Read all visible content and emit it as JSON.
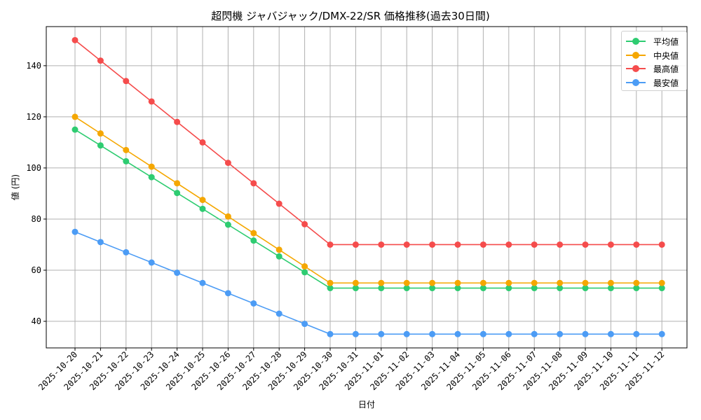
{
  "title": "超閃機 ジャバジャック/DMX-22/SR 価格推移(過去30日間)",
  "chart_data": {
    "type": "line",
    "title": "超閃機 ジャバジャック/DMX-22/SR 価格推移(過去30日間)",
    "xlabel": "日付",
    "ylabel": "値 (円)",
    "ylim": [
      29.6,
      155.3
    ],
    "yticks": [
      40,
      60,
      80,
      100,
      120,
      140
    ],
    "grid": true,
    "legend_position": "upper right",
    "x": [
      "2025-10-20",
      "2025-10-21",
      "2025-10-22",
      "2025-10-23",
      "2025-10-24",
      "2025-10-25",
      "2025-10-26",
      "2025-10-27",
      "2025-10-28",
      "2025-10-29",
      "2025-10-30",
      "2025-10-31",
      "2025-11-01",
      "2025-11-02",
      "2025-11-03",
      "2025-11-04",
      "2025-11-05",
      "2025-11-06",
      "2025-11-07",
      "2025-11-08",
      "2025-11-09",
      "2025-11-10",
      "2025-11-11",
      "2025-11-12"
    ],
    "series": [
      {
        "name": "平均値",
        "color": "#2ecc71",
        "values": [
          115,
          108.8,
          102.6,
          96.4,
          90.2,
          84,
          77.8,
          71.6,
          65.4,
          59.2,
          53,
          53,
          53,
          53,
          53,
          53,
          53,
          53,
          53,
          53,
          53,
          53,
          53,
          53
        ]
      },
      {
        "name": "中央値",
        "color": "#f5a700",
        "values": [
          120,
          113.5,
          107,
          100.5,
          94,
          87.5,
          81,
          74.5,
          68,
          61.5,
          55,
          55,
          55,
          55,
          55,
          55,
          55,
          55,
          55,
          55,
          55,
          55,
          55,
          55
        ]
      },
      {
        "name": "最高値",
        "color": "#f54c4c",
        "values": [
          150,
          142,
          134,
          126,
          118,
          110,
          102,
          94,
          86,
          78,
          70,
          70,
          70,
          70,
          70,
          70,
          70,
          70,
          70,
          70,
          70,
          70,
          70,
          70
        ]
      },
      {
        "name": "最安値",
        "color": "#4c9cf5",
        "values": [
          75,
          71,
          67,
          63,
          59,
          55,
          51,
          47,
          43,
          39,
          35,
          35,
          35,
          35,
          35,
          35,
          35,
          35,
          35,
          35,
          35,
          35,
          35,
          35
        ]
      }
    ]
  }
}
